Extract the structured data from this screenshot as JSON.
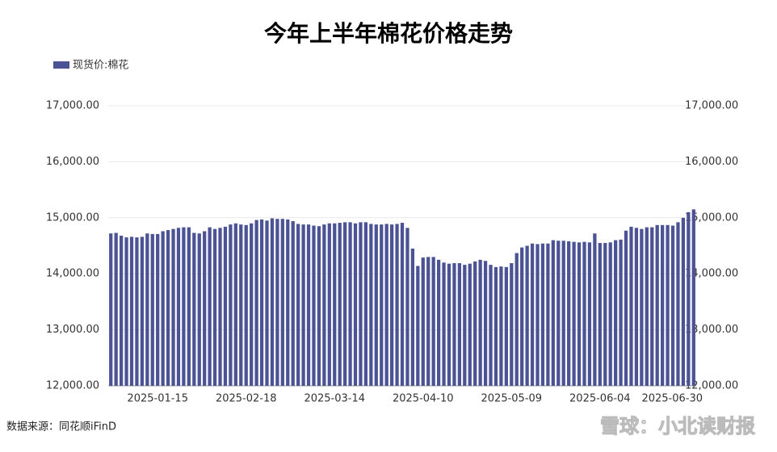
{
  "chart_data": {
    "type": "bar",
    "title": "今年上半年棉花价格走势",
    "source": "数据来源：同花顺iFinD",
    "watermark": "雪球：小北读财报",
    "categories": [
      null,
      null,
      null,
      null,
      null,
      null,
      null,
      null,
      null,
      "2025-01-15",
      null,
      null,
      null,
      null,
      null,
      null,
      null,
      null,
      null,
      null,
      null,
      null,
      null,
      null,
      null,
      null,
      "2025-02-18",
      null,
      null,
      null,
      null,
      null,
      null,
      null,
      null,
      null,
      null,
      null,
      null,
      null,
      null,
      null,
      null,
      "2025-03-14",
      null,
      null,
      null,
      null,
      null,
      null,
      null,
      null,
      null,
      null,
      null,
      null,
      null,
      null,
      null,
      null,
      "2025-04-10",
      null,
      null,
      null,
      null,
      null,
      null,
      null,
      null,
      null,
      null,
      null,
      null,
      null,
      null,
      null,
      null,
      "2025-05-09",
      null,
      null,
      null,
      null,
      null,
      null,
      null,
      null,
      null,
      null,
      null,
      null,
      null,
      null,
      null,
      null,
      "2025-06-04",
      null,
      null,
      null,
      null,
      null,
      null,
      null,
      null,
      null,
      null,
      null,
      null,
      null,
      null,
      null,
      null,
      null,
      "2025-06-30"
    ],
    "series": [
      {
        "name": "现货价:棉花",
        "color": "#4b5394",
        "values": [
          14720,
          14730,
          14680,
          14650,
          14660,
          14650,
          14660,
          14720,
          14710,
          14710,
          14760,
          14780,
          14800,
          14820,
          14830,
          14830,
          14730,
          14720,
          14760,
          14830,
          14800,
          14820,
          14840,
          14880,
          14900,
          14880,
          14870,
          14900,
          14960,
          14970,
          14950,
          14990,
          14980,
          14980,
          14970,
          14940,
          14890,
          14880,
          14880,
          14860,
          14850,
          14880,
          14900,
          14900,
          14910,
          14920,
          14920,
          14900,
          14920,
          14920,
          14890,
          14880,
          14880,
          14890,
          14880,
          14890,
          14910,
          14820,
          14450,
          14140,
          14290,
          14300,
          14300,
          14250,
          14200,
          14180,
          14190,
          14190,
          14160,
          14180,
          14220,
          14250,
          14230,
          14160,
          14120,
          14130,
          14120,
          14190,
          14370,
          14470,
          14500,
          14540,
          14530,
          14540,
          14540,
          14600,
          14590,
          14590,
          14580,
          14570,
          14560,
          14570,
          14560,
          14720,
          14550,
          14550,
          14560,
          14600,
          14610,
          14770,
          14840,
          14820,
          14800,
          14830,
          14830,
          14870,
          14870,
          14870,
          14860,
          14920,
          15000,
          15100,
          15150
        ]
      }
    ],
    "ylim": [
      12000,
      17000
    ],
    "yticks": [
      {
        "value": 12000,
        "label": "12,000.00"
      },
      {
        "value": 13000,
        "label": "13,000.00"
      },
      {
        "value": 14000,
        "label": "14,000.00"
      },
      {
        "value": 15000,
        "label": "15,000.00"
      },
      {
        "value": 16000,
        "label": "16,000.00"
      },
      {
        "value": 17000,
        "label": "17,000.00"
      }
    ],
    "y2lim": [
      12000,
      17000
    ],
    "y2ticks": [
      {
        "value": 12000,
        "label": "12,000.00"
      },
      {
        "value": 13000,
        "label": "13,000.00"
      },
      {
        "value": 14000,
        "label": "14,000.00"
      },
      {
        "value": 15000,
        "label": "15,000.00"
      },
      {
        "value": 16000,
        "label": "16,000.00"
      },
      {
        "value": 17000,
        "label": "17,000.00"
      }
    ],
    "grid": true,
    "legend": "top-left"
  }
}
